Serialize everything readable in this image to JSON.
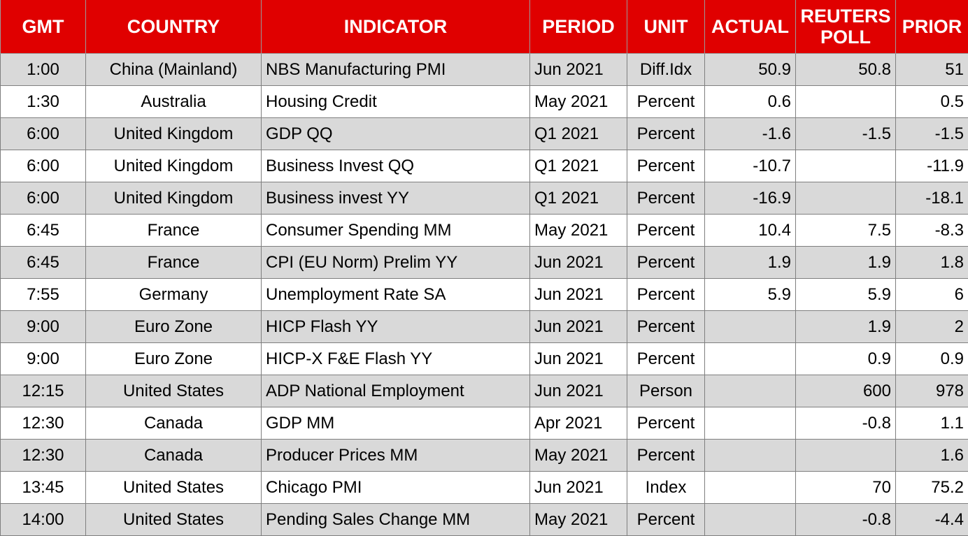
{
  "table": {
    "columns": [
      "GMT",
      "COUNTRY",
      "INDICATOR",
      "PERIOD",
      "UNIT",
      "ACTUAL",
      "REUTERS POLL",
      "PRIOR"
    ],
    "rows": [
      [
        "1:00",
        "China (Mainland)",
        "NBS Manufacturing PMI",
        "Jun 2021",
        "Diff.Idx",
        "50.9",
        "50.8",
        "51"
      ],
      [
        "1:30",
        "Australia",
        "Housing Credit",
        "May 2021",
        "Percent",
        "0.6",
        null,
        "0.5"
      ],
      [
        "6:00",
        "United Kingdom",
        "GDP QQ",
        "Q1 2021",
        "Percent",
        "-1.6",
        "-1.5",
        "-1.5"
      ],
      [
        "6:00",
        "United Kingdom",
        "Business Invest QQ",
        "Q1 2021",
        "Percent",
        "-10.7",
        null,
        "-11.9"
      ],
      [
        "6:00",
        "United Kingdom",
        "Business invest YY",
        "Q1 2021",
        "Percent",
        "-16.9",
        null,
        "-18.1"
      ],
      [
        "6:45",
        "France",
        "Consumer Spending MM",
        "May 2021",
        "Percent",
        "10.4",
        "7.5",
        "-8.3"
      ],
      [
        "6:45",
        "France",
        "CPI (EU Norm) Prelim YY",
        "Jun 2021",
        "Percent",
        "1.9",
        "1.9",
        "1.8"
      ],
      [
        "7:55",
        "Germany",
        "Unemployment Rate SA",
        "Jun 2021",
        "Percent",
        "5.9",
        "5.9",
        "6"
      ],
      [
        "9:00",
        "Euro Zone",
        "HICP Flash YY",
        "Jun 2021",
        "Percent",
        null,
        "1.9",
        "2"
      ],
      [
        "9:00",
        "Euro Zone",
        "HICP-X F&E Flash YY",
        "Jun 2021",
        "Percent",
        null,
        "0.9",
        "0.9"
      ],
      [
        "12:15",
        "United States",
        "ADP National Employment",
        "Jun 2021",
        "Person",
        null,
        "600",
        "978"
      ],
      [
        "12:30",
        "Canada",
        "GDP MM",
        "Apr 2021",
        "Percent",
        null,
        "-0.8",
        "1.1"
      ],
      [
        "12:30",
        "Canada",
        "Producer Prices MM",
        "May 2021",
        "Percent",
        null,
        null,
        "1.6"
      ],
      [
        "13:45",
        "United States",
        "Chicago PMI",
        "Jun 2021",
        "Index",
        null,
        "70",
        "75.2"
      ],
      [
        "14:00",
        "United States",
        "Pending Sales Change MM",
        "May 2021",
        "Percent",
        null,
        "-0.8",
        "-4.4"
      ]
    ]
  }
}
